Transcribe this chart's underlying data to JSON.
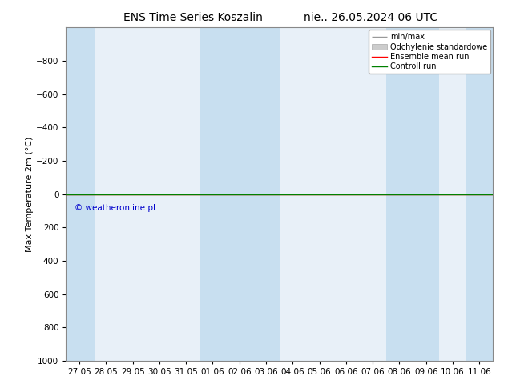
{
  "title_left": "ENS Time Series Koszalin",
  "title_right": "nie.. 26.05.2024 06 UTC",
  "ylabel": "Max Temperature 2m (°C)",
  "ylim_bottom": 1000,
  "ylim_top": -1000,
  "yticks": [
    -800,
    -600,
    -400,
    -200,
    0,
    200,
    400,
    600,
    800,
    1000
  ],
  "xtick_labels": [
    "27.05",
    "28.05",
    "29.05",
    "30.05",
    "31.05",
    "01.06",
    "02.06",
    "03.06",
    "04.06",
    "05.06",
    "06.06",
    "07.06",
    "08.06",
    "09.06",
    "10.06",
    "11.06"
  ],
  "xtick_positions": [
    0,
    1,
    2,
    3,
    4,
    5,
    6,
    7,
    8,
    9,
    10,
    11,
    12,
    13,
    14,
    15
  ],
  "shaded_ranges": [
    [
      -0.5,
      0.6
    ],
    [
      4.5,
      7.5
    ],
    [
      11.5,
      13.5
    ],
    [
      14.5,
      15.6
    ]
  ],
  "control_run_y": 0,
  "control_run_color": "#008000",
  "ensemble_mean_color": "#ff0000",
  "copyright_text": "© weatheronline.pl",
  "copyright_color": "#0000cc",
  "background_color": "#ffffff",
  "plot_bg_color": "#e8f0f8",
  "shaded_color": "#c8dff0",
  "title_fontsize": 10,
  "ylabel_fontsize": 8,
  "tick_fontsize": 7.5
}
